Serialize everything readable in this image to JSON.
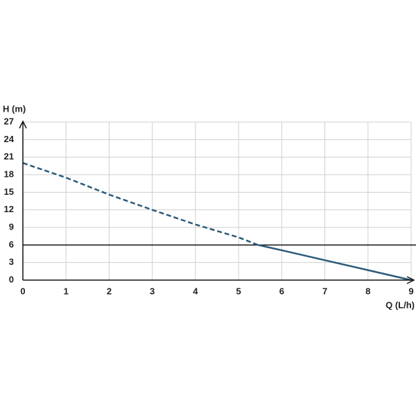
{
  "chart_data": {
    "type": "line",
    "xlabel": "Q (L/h)",
    "ylabel": "H (m)",
    "xlim": [
      0,
      9
    ],
    "xticks": [
      0,
      1,
      2,
      3,
      4,
      5,
      6,
      7,
      8,
      9
    ],
    "ylim": [
      0,
      27
    ],
    "yticks": [
      0,
      3,
      6,
      9,
      12,
      15,
      18,
      21,
      24,
      27
    ],
    "grid": true,
    "grid_color": "#cfcfcf",
    "hline": {
      "value": 6,
      "color": "#111111"
    },
    "series": [
      {
        "color": "#2b5a78",
        "dashed": true,
        "x": [
          0,
          1,
          2,
          3,
          4,
          5,
          5.45
        ],
        "values": [
          20,
          17.5,
          14.6,
          12,
          9.5,
          7.3,
          6
        ]
      },
      {
        "color": "#2b5a78",
        "dashed": false,
        "x": [
          5.45,
          6,
          7,
          8,
          9
        ],
        "values": [
          6,
          5.1,
          3.4,
          1.7,
          0
        ]
      }
    ]
  }
}
